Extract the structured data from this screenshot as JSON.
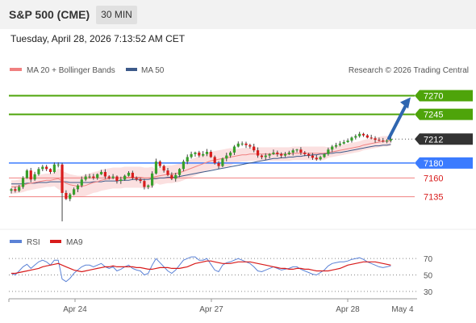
{
  "header": {
    "title": "S&P 500 (CME)",
    "timeframe": "30 MIN"
  },
  "datetime": "Tuesday, April 28, 2026 7:13:52 AM CET",
  "legend": {
    "ma20": "MA 20 + Bollinger Bands",
    "ma50": "MA 50",
    "rsi": "RSI",
    "ma9": "MA9",
    "credit": "Research © 2026 Trading Central"
  },
  "colors": {
    "resistance": "#4ea40a",
    "support": "#3b7bff",
    "support_minor": "#f08080",
    "ma20": "#f08080",
    "ma50": "#3d5a8a",
    "band": "#fbe0e0",
    "bull_candle": "#37a02a",
    "bear_candle": "#d81b1b",
    "arrow": "#2f66b0",
    "rsi": "#5b82d6",
    "ma9": "#d81b1b",
    "current": "#333333"
  },
  "chart_data": [
    {
      "type": "candlestick",
      "title": "",
      "ylim": [
        7100,
        7290
      ],
      "x_ticks": [
        "Apr 24",
        "Apr 27",
        "Apr 28",
        "May 4"
      ],
      "levels": [
        {
          "value": 7270,
          "label": "7270",
          "kind": "resistance"
        },
        {
          "value": 7245,
          "label": "7245",
          "kind": "resistance"
        },
        {
          "value": 7212,
          "label": "7212",
          "kind": "current"
        },
        {
          "value": 7180,
          "label": "7180",
          "kind": "support"
        },
        {
          "value": 7160,
          "label": "7160",
          "kind": "support_minor"
        },
        {
          "value": 7135,
          "label": "7135",
          "kind": "support_minor"
        }
      ],
      "forecast": {
        "from": 7212,
        "to": 7270
      },
      "closes": [
        7145,
        7143,
        7148,
        7160,
        7170,
        7158,
        7165,
        7172,
        7175,
        7172,
        7168,
        7178,
        7178,
        7140,
        7132,
        7138,
        7145,
        7150,
        7158,
        7162,
        7162,
        7160,
        7165,
        7168,
        7162,
        7160,
        7162,
        7156,
        7158,
        7163,
        7167,
        7160,
        7158,
        7156,
        7148,
        7150,
        7166,
        7182,
        7176,
        7170,
        7164,
        7159,
        7164,
        7172,
        7182,
        7188,
        7192,
        7194,
        7190,
        7192,
        7195,
        7188,
        7180,
        7176,
        7186,
        7190,
        7194,
        7202,
        7206,
        7206,
        7204,
        7202,
        7197,
        7190,
        7188,
        7190,
        7192,
        7194,
        7192,
        7190,
        7192,
        7194,
        7197,
        7198,
        7194,
        7192,
        7190,
        7187,
        7185,
        7188,
        7192,
        7198,
        7202,
        7204,
        7206,
        7208,
        7210,
        7214,
        7216,
        7219,
        7217,
        7214,
        7213,
        7211,
        7210,
        7209,
        7210,
        7212
      ],
      "ma20": [
        7148,
        7148,
        7149,
        7150,
        7152,
        7153,
        7154,
        7155,
        7156,
        7157,
        7157,
        7158,
        7159,
        7156,
        7153,
        7151,
        7150,
        7149,
        7149,
        7150,
        7152,
        7154,
        7155,
        7157,
        7158,
        7159,
        7160,
        7160,
        7160,
        7161,
        7161,
        7161,
        7161,
        7161,
        7160,
        7160,
        7161,
        7162,
        7163,
        7164,
        7165,
        7165,
        7166,
        7167,
        7169,
        7171,
        7173,
        7175,
        7177,
        7179,
        7181,
        7183,
        7184,
        7185,
        7186,
        7187,
        7188,
        7189,
        7190,
        7191,
        7191,
        7192,
        7192,
        7192,
        7192,
        7192,
        7192,
        7192,
        7192,
        7192,
        7192,
        7192,
        7193,
        7193,
        7193,
        7193,
        7193,
        7193,
        7193,
        7193,
        7193,
        7194,
        7195,
        7196,
        7197,
        7198,
        7199,
        7200,
        7201,
        7202,
        7204,
        7205,
        7206,
        7207,
        7208,
        7209,
        7209,
        7210
      ],
      "ma50": [
        7152,
        7152,
        7152,
        7152,
        7153,
        7153,
        7153,
        7154,
        7154,
        7154,
        7155,
        7155,
        7155,
        7155,
        7155,
        7154,
        7154,
        7154,
        7154,
        7154,
        7154,
        7155,
        7155,
        7155,
        7156,
        7156,
        7156,
        7156,
        7157,
        7157,
        7157,
        7158,
        7158,
        7158,
        7158,
        7158,
        7159,
        7159,
        7160,
        7160,
        7161,
        7161,
        7161,
        7162,
        7163,
        7164,
        7165,
        7166,
        7167,
        7168,
        7169,
        7170,
        7171,
        7172,
        7173,
        7174,
        7175,
        7176,
        7177,
        7178,
        7179,
        7180,
        7181,
        7182,
        7183,
        7184,
        7185,
        7186,
        7186,
        7187,
        7187,
        7188,
        7188,
        7189,
        7189,
        7190,
        7190,
        7191,
        7191,
        7192,
        7192,
        7193,
        7193,
        7194,
        7194,
        7195,
        7196,
        7197,
        7198,
        7199,
        7200,
        7201,
        7202,
        7203,
        7203,
        7204,
        7204,
        7205
      ]
    },
    {
      "type": "line",
      "title": "",
      "ylim": [
        25,
        80
      ],
      "y_ticks": [
        70,
        50,
        30
      ],
      "series": [
        {
          "name": "RSI",
          "values": [
            52,
            50,
            55,
            60,
            63,
            58,
            62,
            66,
            68,
            66,
            62,
            68,
            68,
            45,
            42,
            46,
            52,
            56,
            60,
            62,
            62,
            60,
            62,
            64,
            60,
            58,
            60,
            55,
            57,
            60,
            62,
            58,
            56,
            55,
            50,
            52,
            62,
            70,
            65,
            60,
            55,
            52,
            56,
            62,
            68,
            70,
            72,
            72,
            68,
            68,
            70,
            63,
            56,
            54,
            62,
            65,
            66,
            68,
            70,
            68,
            66,
            64,
            60,
            55,
            54,
            56,
            58,
            60,
            58,
            56,
            57,
            58,
            60,
            60,
            57,
            55,
            53,
            51,
            50,
            53,
            56,
            61,
            64,
            65,
            66,
            66,
            67,
            69,
            70,
            71,
            69,
            66,
            64,
            62,
            60,
            59,
            60,
            61
          ]
        },
        {
          "name": "MA9",
          "values": [
            52,
            52,
            53,
            54,
            55,
            56,
            57,
            58,
            60,
            61,
            62,
            63,
            64,
            62,
            60,
            58,
            56,
            55,
            54,
            55,
            56,
            57,
            58,
            59,
            60,
            60,
            61,
            60,
            60,
            60,
            60,
            60,
            59,
            59,
            58,
            57,
            57,
            58,
            59,
            59,
            59,
            58,
            58,
            58,
            59,
            60,
            62,
            64,
            65,
            66,
            67,
            67,
            66,
            65,
            64,
            64,
            64,
            65,
            66,
            66,
            66,
            66,
            65,
            64,
            63,
            62,
            61,
            60,
            59,
            58,
            58,
            57,
            57,
            58,
            58,
            57,
            57,
            56,
            55,
            55,
            55,
            55,
            56,
            57,
            58,
            60,
            62,
            63,
            64,
            65,
            66,
            66,
            66,
            66,
            65,
            64,
            63,
            62
          ]
        }
      ]
    }
  ]
}
